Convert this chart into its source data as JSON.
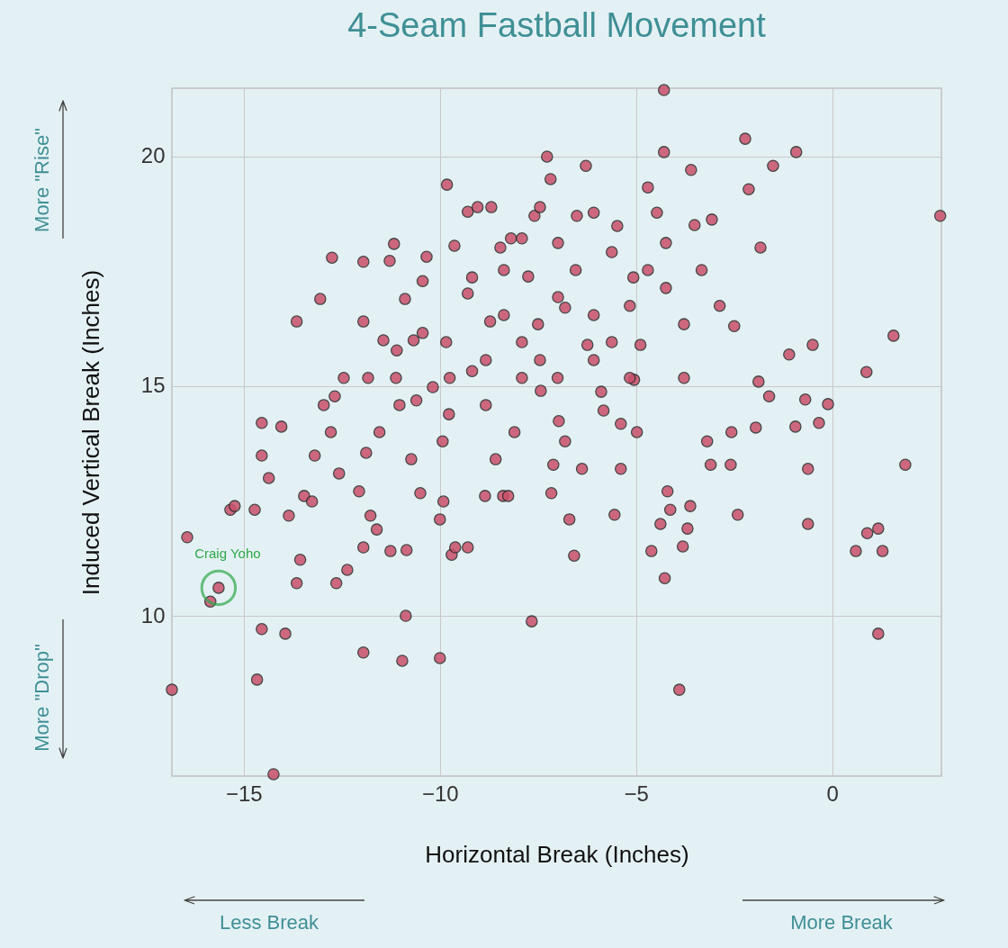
{
  "chart_data": {
    "type": "scatter",
    "title": "4-Seam Fastball Movement",
    "xlabel": "Horizontal Break (Inches)",
    "ylabel": "Induced Vertical Break (Inches)",
    "xlim": [
      -16.83,
      2.78
    ],
    "ylim": [
      6.51,
      21.49
    ],
    "xticks": [
      -15,
      -10,
      -5,
      0
    ],
    "yticks": [
      10,
      15,
      20
    ],
    "grid": true,
    "marker": "circle",
    "annotations": [
      {
        "text": "Craig Yoho",
        "x": -15.64,
        "y": 10.61
      },
      "More \"Rise\"",
      "More \"Drop\"",
      "Less Break",
      "More Break"
    ],
    "series": [
      {
        "color": "#c9506a",
        "x": [
          -16.83,
          -16.44,
          -15.85,
          -15.64,
          -15.34,
          -15.23,
          -14.72,
          -14.54,
          -14.54,
          -14.54,
          -14.66,
          -14.24,
          -14.36,
          -14.04,
          -13.94,
          -13.85,
          -13.65,
          -13.56,
          -13.65,
          -13.46,
          -13.26,
          -13.19,
          -13.05,
          -12.96,
          -12.78,
          -12.75,
          -12.68,
          -12.57,
          -12.64,
          -12.45,
          -12.36,
          -12.06,
          -11.95,
          -11.95,
          -11.95,
          -11.95,
          -11.88,
          -11.83,
          -11.77,
          -11.61,
          -11.54,
          -11.44,
          -11.28,
          -11.17,
          -11.26,
          -11.1,
          -11.03,
          -10.96,
          -10.87,
          -10.85,
          -10.89,
          -10.73,
          -10.67,
          -10.6,
          -10.5,
          -10.44,
          -10.34,
          -10.18,
          -10.0,
          -9.93,
          -9.91,
          -10.0,
          -9.82,
          -9.77,
          -9.7,
          -9.61,
          -9.29,
          -9.63,
          -9.29,
          -9.18,
          -9.04,
          -9.18,
          -8.85,
          -8.69,
          -8.72,
          -8.58,
          -8.46,
          -8.39,
          -8.26,
          -8.19,
          -8.1,
          -7.91,
          -7.75,
          -7.66,
          -7.59,
          -7.5,
          -7.43,
          -7.27,
          -7.18,
          -7.16,
          -7.11,
          -6.97,
          -6.81,
          -6.7,
          -6.81,
          -6.58,
          -6.51,
          -6.38,
          -6.28,
          -6.24,
          -6.08,
          -5.89,
          -5.83,
          -5.55,
          -5.39,
          -5.48,
          -5.39,
          -5.07,
          -5.05,
          -4.98,
          -4.89,
          -4.7,
          -4.61,
          -4.47,
          -4.38,
          -4.29,
          -4.29,
          -4.27,
          -4.2,
          -4.13,
          -3.9,
          -3.81,
          -3.69,
          -3.62,
          -3.6,
          -3.51,
          -3.19,
          -3.1,
          -3.07,
          -2.87,
          -2.57,
          -2.59,
          -2.5,
          -2.41,
          -2.22,
          -2.13,
          -1.95,
          -1.88,
          -1.83,
          -1.61,
          -1.51,
          -1.1,
          -0.94,
          -0.92,
          -0.69,
          -0.62,
          -0.62,
          -0.5,
          -0.34,
          -0.11,
          0.6,
          0.87,
          0.89,
          1.17,
          1.17,
          1.28,
          1.56,
          1.86,
          2.75,
          -9.84,
          -9.29,
          -8.83,
          -8.37,
          -7.91,
          -7.45,
          -6.99,
          -6.54,
          -6.08,
          -5.62,
          -5.16,
          -4.7,
          -4.24,
          -3.78,
          -3.33,
          -9.75,
          -8.83,
          -7.91,
          -7.0,
          -6.08,
          -5.16,
          -3.78,
          -10.44,
          -11.12,
          -7.45,
          -5.62,
          -4.24,
          -8.37,
          -6.99
        ],
        "values": [
          8.39,
          11.71,
          10.31,
          10.61,
          12.31,
          12.39,
          12.31,
          14.2,
          13.49,
          9.71,
          8.61,
          6.55,
          13.0,
          14.12,
          9.61,
          12.18,
          10.71,
          11.22,
          16.41,
          12.61,
          12.49,
          13.49,
          16.9,
          14.59,
          14.0,
          17.8,
          14.78,
          13.1,
          10.71,
          15.18,
          11.0,
          12.71,
          9.2,
          17.71,
          16.41,
          11.49,
          13.55,
          15.18,
          12.18,
          11.88,
          14.0,
          16.0,
          17.73,
          18.1,
          11.41,
          15.78,
          14.59,
          9.02,
          10.0,
          11.43,
          16.9,
          13.41,
          16.0,
          14.69,
          12.67,
          17.29,
          17.82,
          14.98,
          9.08,
          13.8,
          12.49,
          12.1,
          19.39,
          14.39,
          11.33,
          11.49,
          11.49,
          18.06,
          18.8,
          17.37,
          18.9,
          15.33,
          12.61,
          18.9,
          16.41,
          13.41,
          18.02,
          12.61,
          12.61,
          18.22,
          14.0,
          18.22,
          17.39,
          9.88,
          18.71,
          16.35,
          14.9,
          20.0,
          19.51,
          12.67,
          13.29,
          14.24,
          13.8,
          12.1,
          16.71,
          11.31,
          18.71,
          13.2,
          19.8,
          15.9,
          18.78,
          14.88,
          14.47,
          12.2,
          13.2,
          18.49,
          14.18,
          17.37,
          15.14,
          14.0,
          15.9,
          19.33,
          11.41,
          18.78,
          12.0,
          21.45,
          20.1,
          10.82,
          12.71,
          12.31,
          8.39,
          11.51,
          11.9,
          12.39,
          19.71,
          18.51,
          13.8,
          13.29,
          18.63,
          16.75,
          14.0,
          13.29,
          16.31,
          12.2,
          20.39,
          19.29,
          14.1,
          15.1,
          18.02,
          14.78,
          19.8,
          15.69,
          14.12,
          20.1,
          14.71,
          13.2,
          12.0,
          15.9,
          14.2,
          14.61,
          11.41,
          15.31,
          11.8,
          11.9,
          9.61,
          11.41,
          16.1,
          13.29,
          18.71,
          15.96,
          17.02,
          15.57,
          16.55,
          15.96,
          15.57,
          16.94,
          17.53,
          16.55,
          15.96,
          16.75,
          17.53,
          17.14,
          16.35,
          17.53,
          15.18,
          14.59,
          15.18,
          15.18,
          15.57,
          15.18,
          15.18,
          16.16,
          15.18,
          18.9,
          17.92,
          18.12,
          17.53,
          18.12
        ]
      }
    ]
  }
}
